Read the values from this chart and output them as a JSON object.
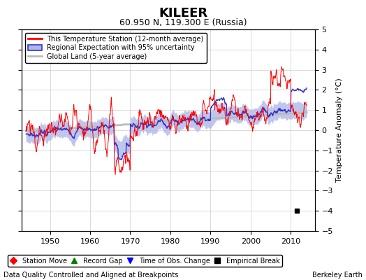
{
  "title": "KILEER",
  "subtitle": "60.950 N, 119.300 E (Russia)",
  "ylabel": "Temperature Anomaly (°C)",
  "xlabel_note": "Data Quality Controlled and Aligned at Breakpoints",
  "credit": "Berkeley Earth",
  "ylim": [
    -5,
    5
  ],
  "xlim": [
    1943,
    2016
  ],
  "yticks": [
    -5,
    -4,
    -3,
    -2,
    -1,
    0,
    1,
    2,
    3,
    4,
    5
  ],
  "xticks": [
    1950,
    1960,
    1970,
    1980,
    1990,
    2000,
    2010
  ],
  "station_color": "#ff0000",
  "regional_color": "#3333cc",
  "regional_fill_color": "#b0b8e8",
  "global_color": "#bbbbbb",
  "empirical_break_year": 2011.5,
  "empirical_break_value": -4.0,
  "background_color": "#ffffff",
  "grid_color": "#cccccc",
  "title_fontsize": 13,
  "subtitle_fontsize": 9,
  "label_fontsize": 8,
  "tick_fontsize": 8
}
